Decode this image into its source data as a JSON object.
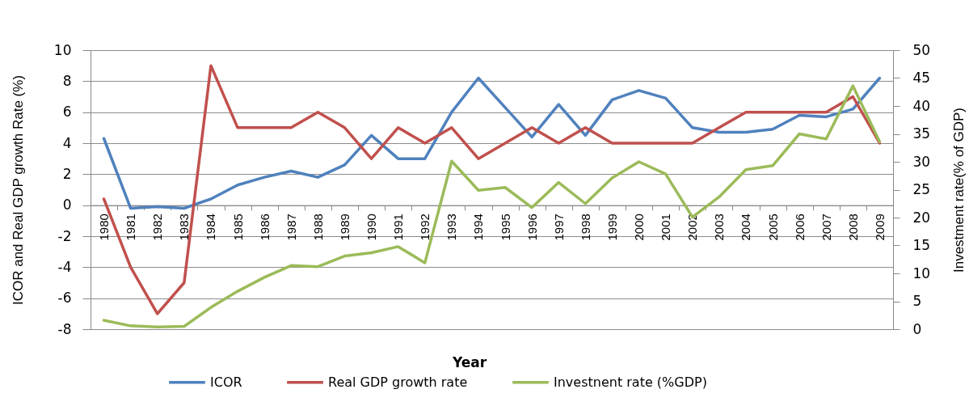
{
  "chart_data": {
    "type": "line",
    "xlabel": "Year",
    "ylabel": "ICOR and Real GDP growth Rate (%)",
    "y2label": "Investment rate(% of GDP)",
    "categories": [
      "1980",
      "1981",
      "1982",
      "1983",
      "1984",
      "1985",
      "1986",
      "1987",
      "1988",
      "1989",
      "1990",
      "1991",
      "1992",
      "1993",
      "1994",
      "1995",
      "1996",
      "1997",
      "1998",
      "1999",
      "2000",
      "2001",
      "2002",
      "2003",
      "2004",
      "2005",
      "2006",
      "2007",
      "2008",
      "2009"
    ],
    "series": [
      {
        "name": "ICOR",
        "color": "#4f81bd",
        "values": [
          4.3,
          -0.2,
          -0.1,
          -0.2,
          0.4,
          1.3,
          1.8,
          2.2,
          1.8,
          2.6,
          4.5,
          3,
          3,
          6,
          8.2,
          6.3,
          4.4,
          6.5,
          4.5,
          6.8,
          7.4,
          6.9,
          5,
          4.7,
          4.7,
          4.9,
          5.8,
          5.7,
          6.2,
          8.2
        ]
      },
      {
        "name": "Real GDP growth rate",
        "color": "#c0504d",
        "values": [
          0.4,
          -4,
          -7,
          -5,
          9,
          5,
          5,
          5,
          6,
          5,
          3,
          5,
          4,
          5,
          3,
          4,
          5,
          4,
          5,
          4,
          4,
          4,
          4,
          5,
          6,
          6,
          6,
          6,
          7,
          4
        ]
      },
      {
        "name": "Investnent rate (%GDP)",
        "color": "#9bbb59",
        "axis": "y2",
        "values": [
          1.6,
          0.6,
          0.4,
          0.5,
          3.9,
          6.8,
          9.3,
          11.4,
          11.2,
          13.1,
          13.7,
          14.8,
          11.9,
          30.1,
          24.9,
          25.4,
          21.8,
          26.3,
          22.5,
          27.1,
          30,
          27.8,
          20.1,
          23.7,
          28.6,
          29.3,
          35,
          34.1,
          43.6,
          33.6
        ]
      }
    ],
    "ylim": [
      -8,
      10
    ],
    "yticks": [
      -8,
      -6,
      -4,
      -2,
      0,
      2,
      4,
      6,
      8,
      10
    ],
    "y2lim": [
      0,
      50
    ],
    "y2ticks": [
      0,
      5,
      10,
      15,
      20,
      25,
      30,
      35,
      40,
      45,
      50
    ],
    "grid": "y",
    "legend": "bottom"
  }
}
